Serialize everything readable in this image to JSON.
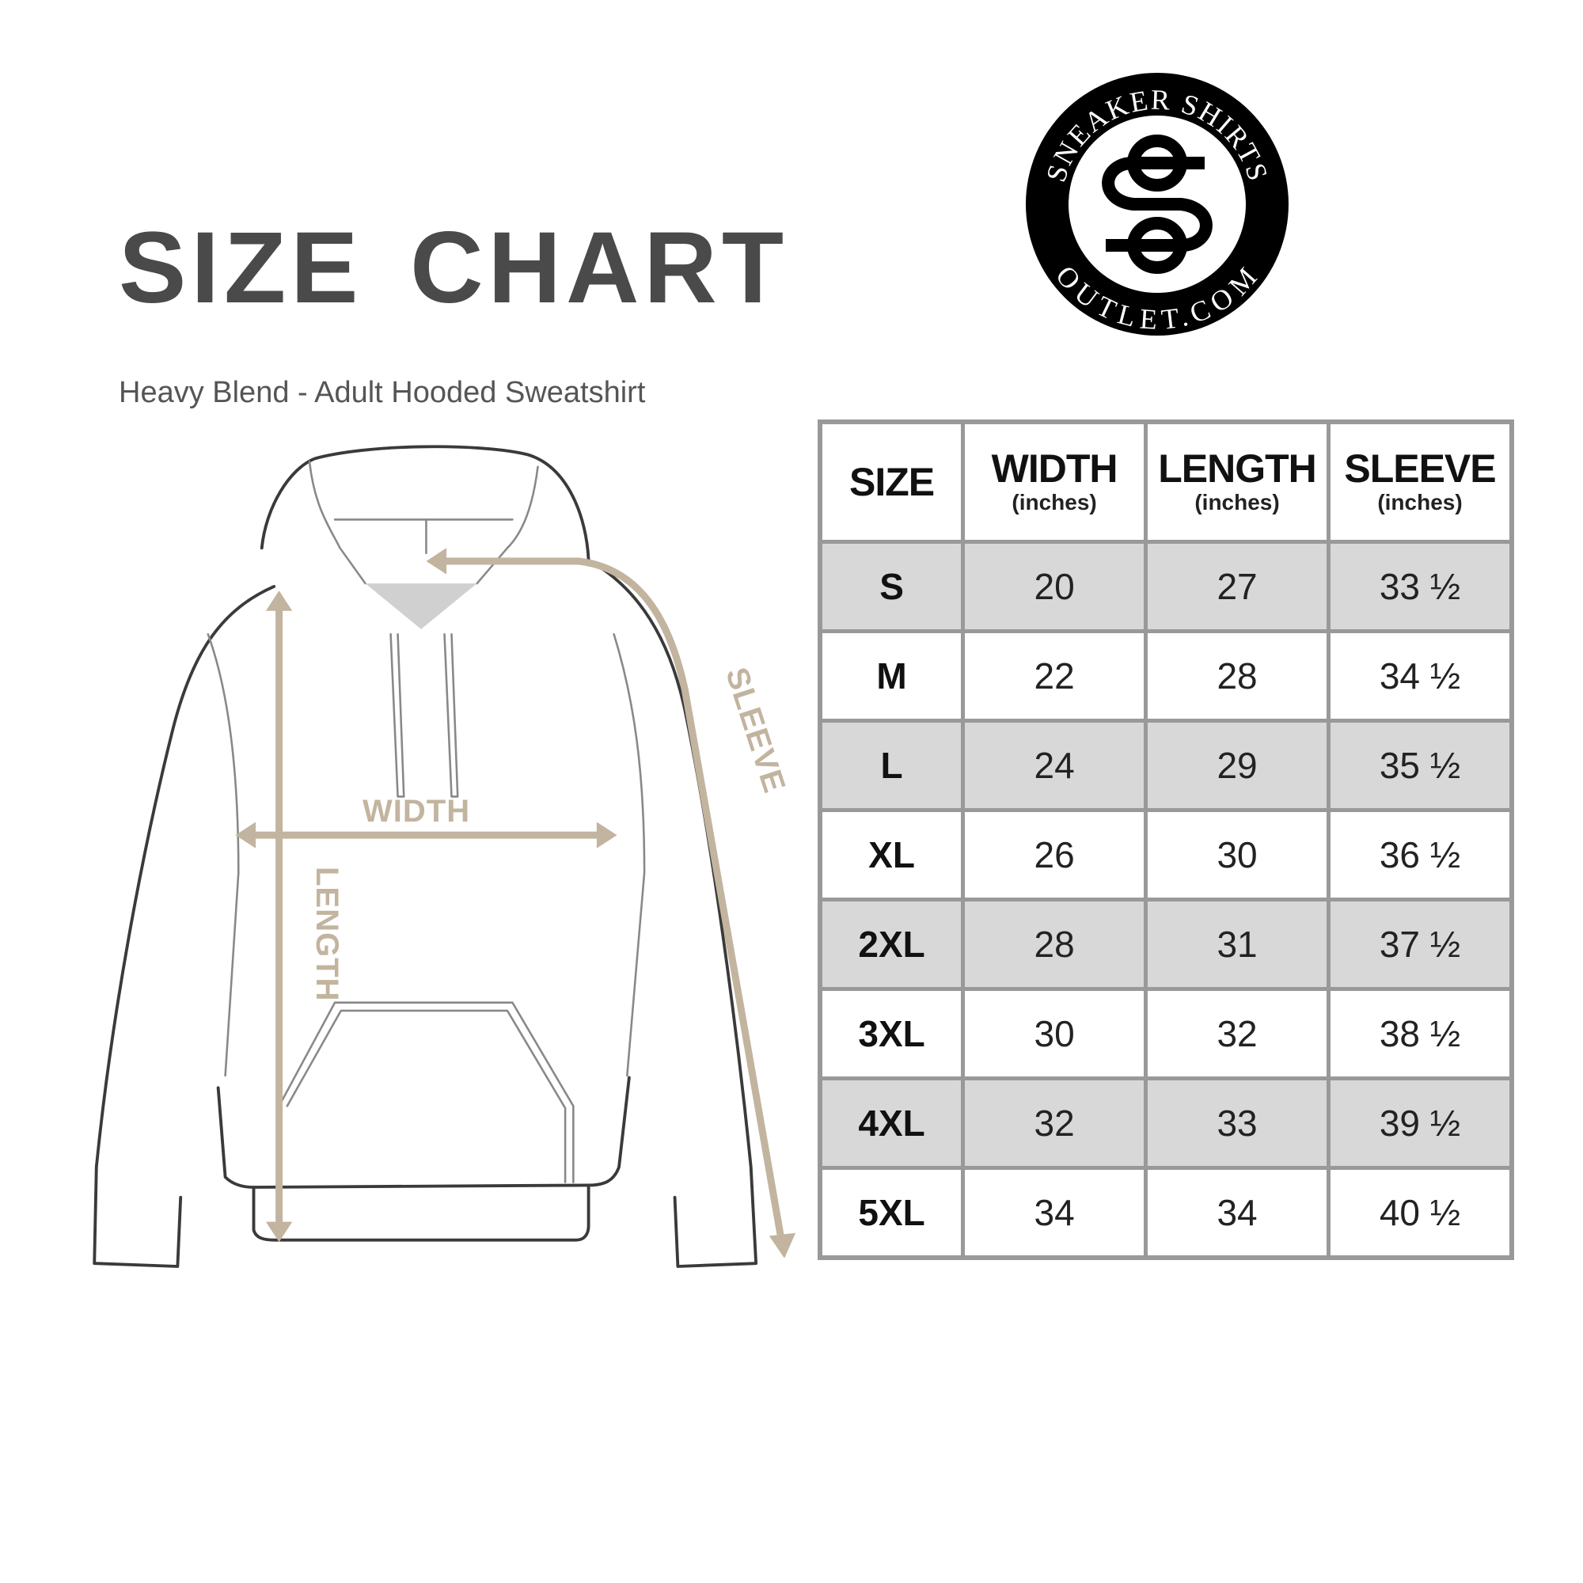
{
  "header": {
    "title": "SIZE CHART",
    "subtitle": "Heavy Blend - Adult Hooded Sweatshirt"
  },
  "logo": {
    "top_text": "SNEAKER SHIRTS",
    "bottom_text": "OUTLET.COM",
    "monogram": "SS"
  },
  "diagram": {
    "labels": {
      "width": "WIDTH",
      "length": "LENGTH",
      "sleeve": "SLEEVE"
    },
    "arrow_color": "#c2b49f"
  },
  "table": {
    "columns": [
      {
        "title": "SIZE",
        "unit": ""
      },
      {
        "title": "WIDTH",
        "unit": "(inches)"
      },
      {
        "title": "LENGTH",
        "unit": "(inches)"
      },
      {
        "title": "SLEEVE",
        "unit": "(inches)"
      }
    ],
    "rows": [
      [
        "S",
        "20",
        "27",
        "33 ½"
      ],
      [
        "M",
        "22",
        "28",
        "34 ½"
      ],
      [
        "L",
        "24",
        "29",
        "35 ½"
      ],
      [
        "XL",
        "26",
        "30",
        "36 ½"
      ],
      [
        "2XL",
        "28",
        "31",
        "37 ½"
      ],
      [
        "3XL",
        "30",
        "32",
        "38 ½"
      ],
      [
        "4XL",
        "32",
        "33",
        "39 ½"
      ],
      [
        "5XL",
        "34",
        "34",
        "40 ½"
      ]
    ],
    "shade_color": "#d8d8d8",
    "border_color": "#999999"
  }
}
